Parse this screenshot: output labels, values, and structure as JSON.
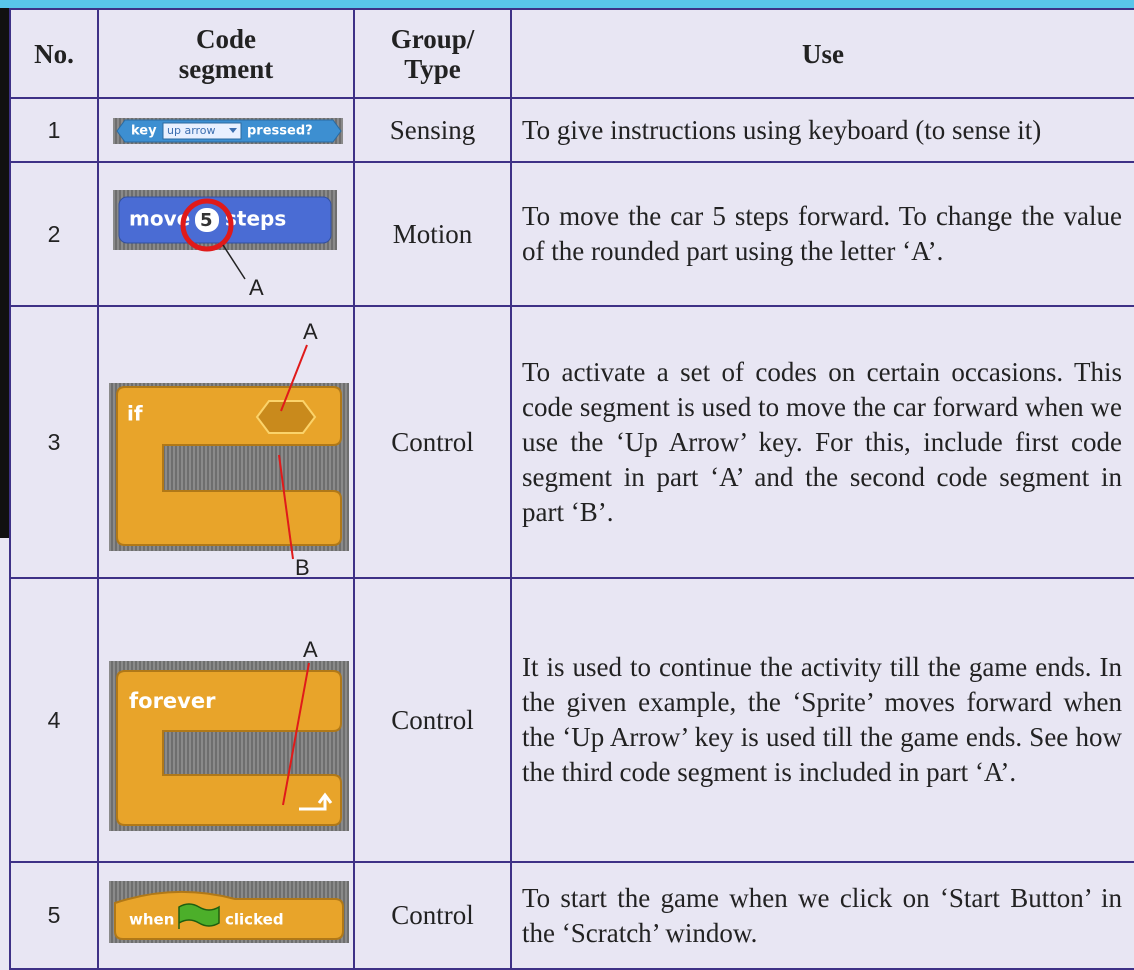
{
  "table": {
    "header": [
      "No.",
      "Code\nsegment",
      "Group/\nType",
      "Use"
    ],
    "rows": [
      {
        "no": "1",
        "block": [
          "key",
          "up arrow",
          "pressed?"
        ],
        "group": "Sensing",
        "use": "To give instructions using keyboard (to sense it)"
      },
      {
        "no": "2",
        "block": [
          "move",
          "5",
          "steps"
        ],
        "labels": [
          "A"
        ],
        "group": "Motion",
        "use": "To move the car 5 steps forward. To change the value of the rounded part using the letter ‘A’."
      },
      {
        "no": "3",
        "block": [
          "if"
        ],
        "labels": [
          "A",
          "B"
        ],
        "group": "Control",
        "use": "To activate a set of codes on certain occasions. This code segment is used to move the car forward when we use the ‘Up Arrow’ key. For this, include first code segment in part ‘A’ and the second code segment in part ‘B’."
      },
      {
        "no": "4",
        "block": [
          "forever"
        ],
        "labels": [
          "A"
        ],
        "group": "Control",
        "use": "It is used to continue the activity till the game ends.  In the given example, the ‘Sprite’ moves forward when the ‘Up Arrow’ key is used till the game ends. See how the third code segment is included in part ‘A’."
      },
      {
        "no": "5",
        "block": [
          "when",
          "clicked"
        ],
        "group": "Control",
        "use": "To start the game when we click on ‘Start Button’ in the ‘Scratch’ window."
      }
    ]
  }
}
